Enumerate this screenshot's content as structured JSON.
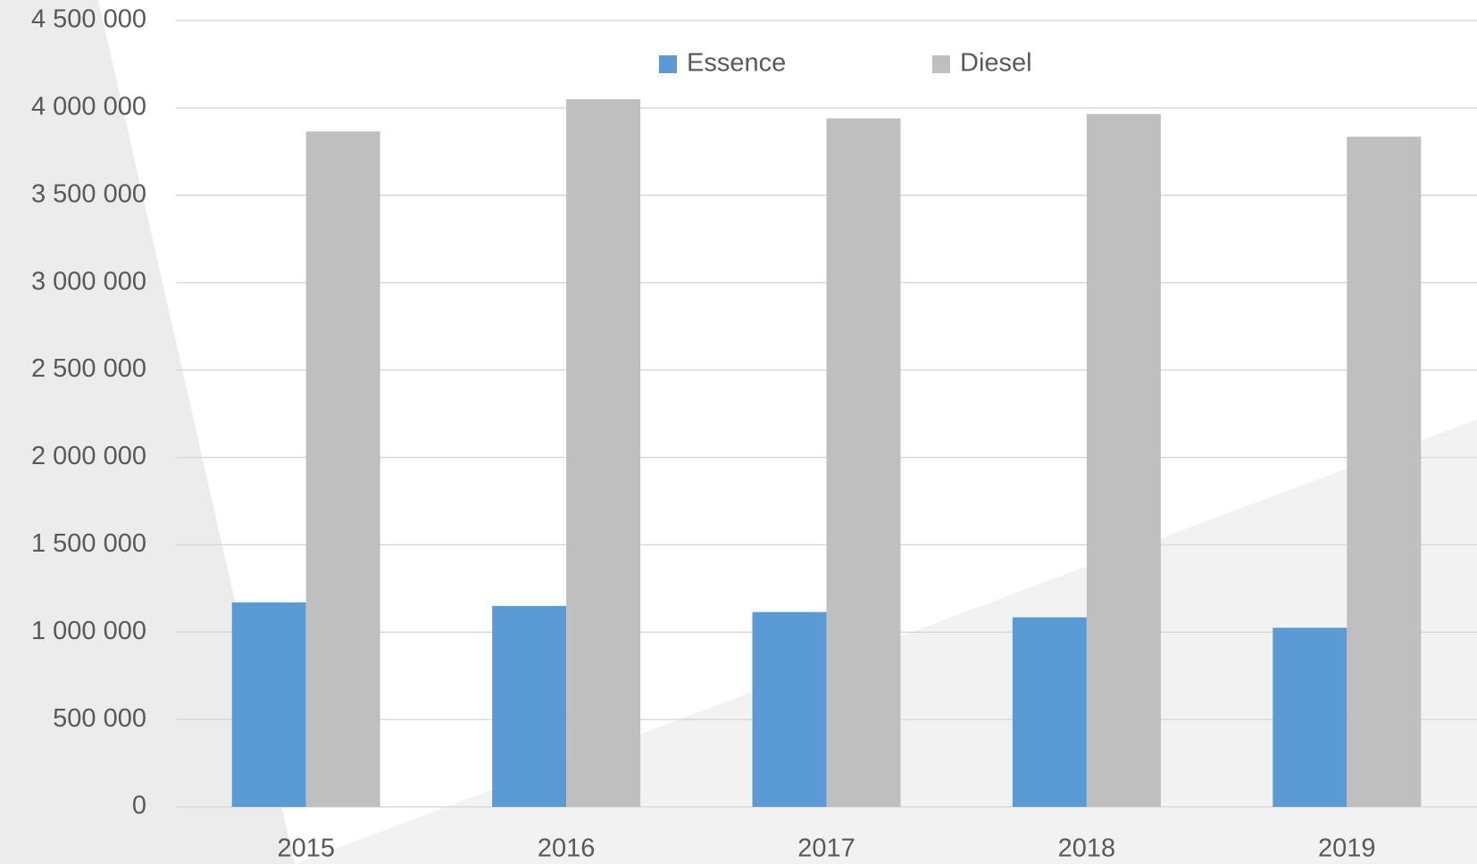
{
  "chart_data": {
    "type": "bar",
    "categories": [
      "2015",
      "2016",
      "2017",
      "2018",
      "2019"
    ],
    "series": [
      {
        "name": "Essence",
        "color": "#5b9bd5",
        "values": [
          1170000,
          1150000,
          1115000,
          1085000,
          1025000
        ]
      },
      {
        "name": "Diesel",
        "color": "#bfbfbf",
        "values": [
          3865000,
          4050000,
          3940000,
          3965000,
          3835000
        ]
      }
    ],
    "ylim": [
      0,
      4500000
    ],
    "yticks": [
      0,
      {
        "value": 500000,
        "label": "500 000"
      },
      {
        "value": 1000000,
        "label": "1 000 000"
      },
      {
        "value": 1500000,
        "label": "1 500 000"
      },
      {
        "value": 2000000,
        "label": "2 000 000"
      },
      {
        "value": 2500000,
        "label": "2 500 000"
      },
      {
        "value": 3000000,
        "label": "3 000 000"
      },
      {
        "value": 3500000,
        "label": "3 500 000"
      },
      {
        "value": 4000000,
        "label": "4 000 000"
      },
      {
        "value": 4500000,
        "label": "4 500 000"
      }
    ],
    "grid": true,
    "legend": "top"
  }
}
